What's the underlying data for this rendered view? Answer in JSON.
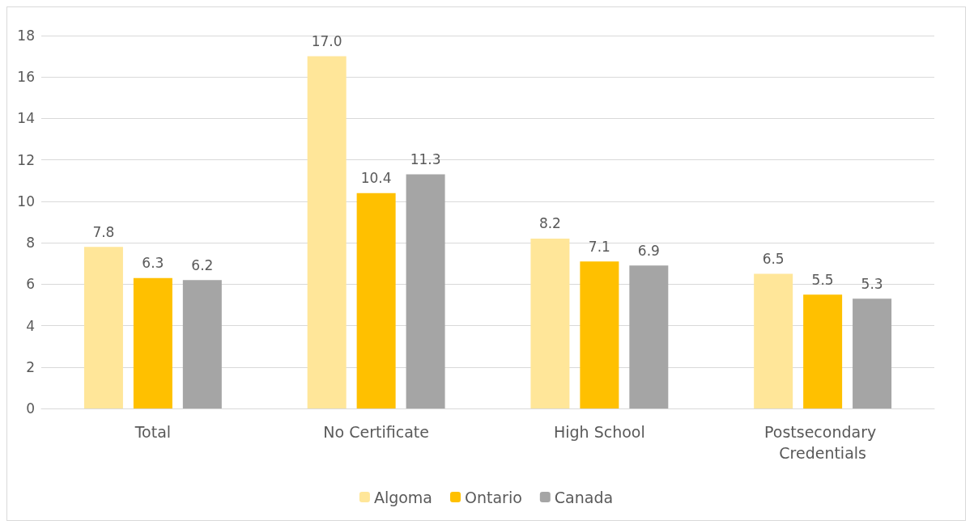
{
  "chart_data": {
    "type": "bar",
    "categories": [
      "Total",
      "No Certificate",
      "High School",
      "Postsecondary Credentials"
    ],
    "series": [
      {
        "name": "Algoma",
        "color": "#ffe699",
        "values": [
          7.8,
          17.0,
          8.2,
          6.5
        ],
        "value_labels": [
          "7.8",
          "17.0",
          "8.2",
          "6.5"
        ]
      },
      {
        "name": "Ontario",
        "color": "#ffc000",
        "values": [
          6.3,
          10.4,
          7.1,
          5.5
        ],
        "value_labels": [
          "6.3",
          "10.4",
          "7.1",
          "5.5"
        ]
      },
      {
        "name": "Canada",
        "color": "#a5a5a5",
        "values": [
          6.2,
          11.3,
          6.9,
          5.3
        ],
        "value_labels": [
          "6.2",
          "11.3",
          "6.9",
          "5.3"
        ]
      }
    ],
    "ylim": [
      0,
      18
    ],
    "yticks": [
      0,
      2,
      4,
      6,
      8,
      10,
      12,
      14,
      16,
      18
    ],
    "grid": "y",
    "legend": "bottom"
  }
}
